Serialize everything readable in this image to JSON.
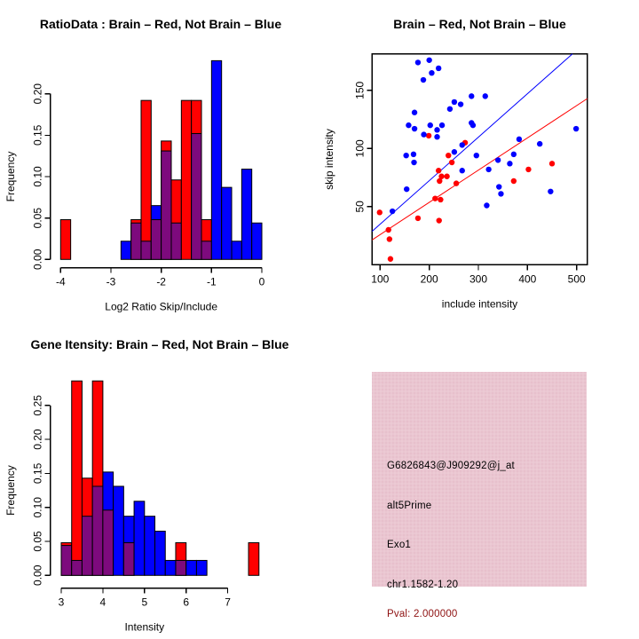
{
  "colors": {
    "red": "#ff0000",
    "blue": "#0000ff",
    "overlap_purple": "#7d0a7d",
    "axis": "#000000",
    "info_box_bg": "#eac6d1",
    "pval_text": "#8e1111"
  },
  "chart_data": [
    {
      "id": "ratio_hist",
      "type": "bar",
      "subtype": "overlaid-histogram",
      "title": "RatioData : Brain – Red, Not Brain – Blue",
      "xlabel": "Log2 Ratio Skip/Include",
      "ylabel": "Frequency",
      "xticks": [
        -4,
        -3,
        -2,
        -1,
        0
      ],
      "ytick_values": [
        0,
        0.05,
        0.1,
        0.15,
        0.2
      ],
      "xlim": [
        -4.2,
        0.2
      ],
      "ylim": [
        0,
        0.24
      ],
      "bin_width": 0.2,
      "legend": {
        "red": "Brain",
        "blue": "Not Brain"
      },
      "bars": [
        {
          "x": -4.0,
          "red": 0.048,
          "blue": 0
        },
        {
          "x": -2.8,
          "red": 0,
          "blue": 0.022
        },
        {
          "x": -2.6,
          "red": 0.048,
          "blue": 0.044
        },
        {
          "x": -2.4,
          "red": 0.192,
          "blue": 0.022
        },
        {
          "x": -2.2,
          "red": 0.048,
          "blue": 0.065
        },
        {
          "x": -2.0,
          "red": 0.143,
          "blue": 0.131
        },
        {
          "x": -1.8,
          "red": 0.096,
          "blue": 0.044
        },
        {
          "x": -1.6,
          "red": 0.192,
          "blue": 0
        },
        {
          "x": -1.4,
          "red": 0.192,
          "blue": 0.152
        },
        {
          "x": -1.2,
          "red": 0.048,
          "blue": 0.022
        },
        {
          "x": -1.0,
          "red": 0,
          "blue": 0.24
        },
        {
          "x": -0.8,
          "red": 0,
          "blue": 0.087
        },
        {
          "x": -0.6,
          "red": 0,
          "blue": 0.022
        },
        {
          "x": -0.4,
          "red": 0,
          "blue": 0.109
        },
        {
          "x": -0.2,
          "red": 0,
          "blue": 0.044
        }
      ]
    },
    {
      "id": "intensity_scatter",
      "type": "scatter",
      "title": "Brain – Red, Not Brain – Blue",
      "xlabel": "include intensity",
      "ylabel": "skip intensity",
      "xticks": [
        100,
        200,
        300,
        400,
        500
      ],
      "yticks": [
        50,
        100,
        150
      ],
      "xlim": [
        83.7,
        521.7
      ],
      "ylim": [
        0,
        181.4
      ],
      "legend": {
        "red": "Brain",
        "blue": "Not Brain"
      },
      "blue_points": [
        [
          125,
          46
        ],
        [
          154,
          65
        ],
        [
          153,
          94
        ],
        [
          158,
          120
        ],
        [
          168,
          95
        ],
        [
          169,
          88
        ],
        [
          170,
          131
        ],
        [
          170,
          117
        ],
        [
          177,
          174
        ],
        [
          188,
          159
        ],
        [
          189,
          112
        ],
        [
          200,
          176
        ],
        [
          202,
          120
        ],
        [
          205,
          165
        ],
        [
          216,
          116
        ],
        [
          216,
          110
        ],
        [
          219,
          169
        ],
        [
          226,
          120
        ],
        [
          242,
          134
        ],
        [
          251,
          140
        ],
        [
          251,
          97
        ],
        [
          264,
          138
        ],
        [
          267,
          103
        ],
        [
          267,
          81
        ],
        [
          286,
          145
        ],
        [
          286,
          122
        ],
        [
          289,
          120
        ],
        [
          296,
          94
        ],
        [
          314,
          145
        ],
        [
          317,
          51
        ],
        [
          321,
          82
        ],
        [
          340,
          90
        ],
        [
          342,
          67
        ],
        [
          346,
          61
        ],
        [
          364,
          87
        ],
        [
          372,
          95
        ],
        [
          383,
          108
        ],
        [
          425,
          104
        ],
        [
          447,
          63
        ],
        [
          499,
          117
        ]
      ],
      "red_points": [
        [
          99,
          45
        ],
        [
          117,
          30
        ],
        [
          119,
          22
        ],
        [
          121,
          5
        ],
        [
          177,
          40
        ],
        [
          199,
          111
        ],
        [
          212,
          57
        ],
        [
          219,
          81
        ],
        [
          220,
          38
        ],
        [
          221,
          72
        ],
        [
          223,
          56
        ],
        [
          225,
          76
        ],
        [
          236,
          76
        ],
        [
          239,
          94
        ],
        [
          246,
          88
        ],
        [
          255,
          70
        ],
        [
          273,
          105
        ],
        [
          372,
          72
        ],
        [
          402,
          82
        ],
        [
          450,
          87
        ]
      ],
      "blue_line": {
        "x1": 83.7,
        "y1": 28.8,
        "x2": 491.5,
        "y2": 181.4
      },
      "red_line": {
        "x1": 83.7,
        "y1": 21.4,
        "x2": 521.7,
        "y2": 142.9
      }
    },
    {
      "id": "gene_hist",
      "type": "bar",
      "subtype": "overlaid-histogram",
      "title": "Gene Itensity: Brain – Red, Not Brain – Blue",
      "xlabel": "Intensity",
      "ylabel": "Frequency",
      "xticks": [
        3,
        4,
        5,
        6,
        7
      ],
      "ytick_values": [
        0,
        0.05,
        0.1,
        0.15,
        0.2,
        0.25
      ],
      "xlim": [
        3,
        7.9
      ],
      "ylim": [
        0,
        0.29
      ],
      "bin_width": 0.25,
      "legend": {
        "red": "Brain",
        "blue": "Not Brain"
      },
      "bars": [
        {
          "x": 3.0,
          "red": 0.048,
          "blue": 0.044
        },
        {
          "x": 3.25,
          "red": 0.286,
          "blue": 0.022
        },
        {
          "x": 3.5,
          "red": 0.143,
          "blue": 0.087
        },
        {
          "x": 3.75,
          "red": 0.286,
          "blue": 0.131
        },
        {
          "x": 4.0,
          "red": 0.096,
          "blue": 0.152
        },
        {
          "x": 4.25,
          "red": 0,
          "blue": 0.131
        },
        {
          "x": 4.5,
          "red": 0.048,
          "blue": 0.087
        },
        {
          "x": 4.75,
          "red": 0,
          "blue": 0.109
        },
        {
          "x": 5.0,
          "red": 0,
          "blue": 0.087
        },
        {
          "x": 5.25,
          "red": 0,
          "blue": 0.065
        },
        {
          "x": 5.5,
          "red": 0,
          "blue": 0.022
        },
        {
          "x": 5.75,
          "red": 0.048,
          "blue": 0.022
        },
        {
          "x": 6.0,
          "red": 0,
          "blue": 0.022
        },
        {
          "x": 6.25,
          "red": 0,
          "blue": 0.022
        },
        {
          "x": 7.5,
          "red": 0.048,
          "blue": 0
        }
      ]
    }
  ],
  "info_box": {
    "lines": [
      {
        "id": "probe-id",
        "text": "G6826843@J909292@j_at",
        "color": "#000000"
      },
      {
        "id": "event-type",
        "text": "alt5Prime",
        "color": "#000000"
      },
      {
        "id": "gene-name",
        "text": "Exo1",
        "color": "#000000"
      },
      {
        "id": "location",
        "text": "chr1.1582-1.20",
        "color": "#000000"
      },
      {
        "id": "pval",
        "text": "Pval: 2.000000",
        "color": "#8e1111"
      }
    ]
  }
}
